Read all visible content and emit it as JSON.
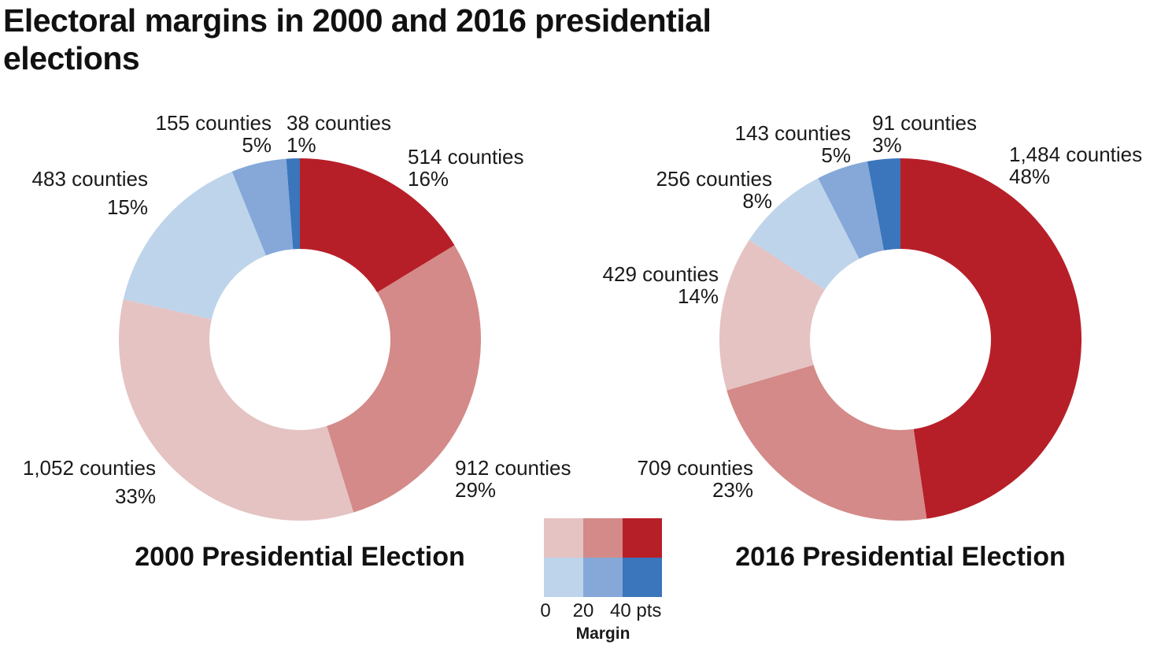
{
  "title": "Electoral margins in 2000 and 2016 presidential elections",
  "chart_data": [
    {
      "type": "pie",
      "title": "2000 Presidential Election",
      "slices": [
        {
          "label": "514 counties",
          "pct": "16%",
          "value": 514,
          "color": "#b71f28"
        },
        {
          "label": "912 counties",
          "pct": "29%",
          "value": 912,
          "color": "#d38a88"
        },
        {
          "label": "1,052 counties",
          "pct": "33%",
          "value": 1052,
          "color": "#e5c3c3"
        },
        {
          "label": "483 counties",
          "pct": "15%",
          "value": 483,
          "color": "#bed4eb"
        },
        {
          "label": "155 counties",
          "pct": "5%",
          "value": 155,
          "color": "#85a8d9"
        },
        {
          "label": "38 counties",
          "pct": "1%",
          "value": 38,
          "color": "#3b75bc"
        }
      ]
    },
    {
      "type": "pie",
      "title": "2016 Presidential Election",
      "slices": [
        {
          "label": "1,484 counties",
          "pct": "48%",
          "value": 1484,
          "color": "#b71f28"
        },
        {
          "label": "709 counties",
          "pct": "23%",
          "value": 709,
          "color": "#d38a88"
        },
        {
          "label": "429 counties",
          "pct": "14%",
          "value": 429,
          "color": "#e5c3c3"
        },
        {
          "label": "256 counties",
          "pct": "8%",
          "value": 256,
          "color": "#bed4eb"
        },
        {
          "label": "143 counties",
          "pct": "5%",
          "value": 143,
          "color": "#85a8d9"
        },
        {
          "label": "91 counties",
          "pct": "3%",
          "value": 91,
          "color": "#3b75bc"
        }
      ]
    }
  ],
  "legend": {
    "title": "Margin",
    "ticks": [
      "0",
      "20",
      "40 pts"
    ],
    "red_colors": [
      "#e5c3c3",
      "#d38a88",
      "#b71f28"
    ],
    "blue_colors": [
      "#bed4eb",
      "#85a8d9",
      "#3b75bc"
    ]
  }
}
